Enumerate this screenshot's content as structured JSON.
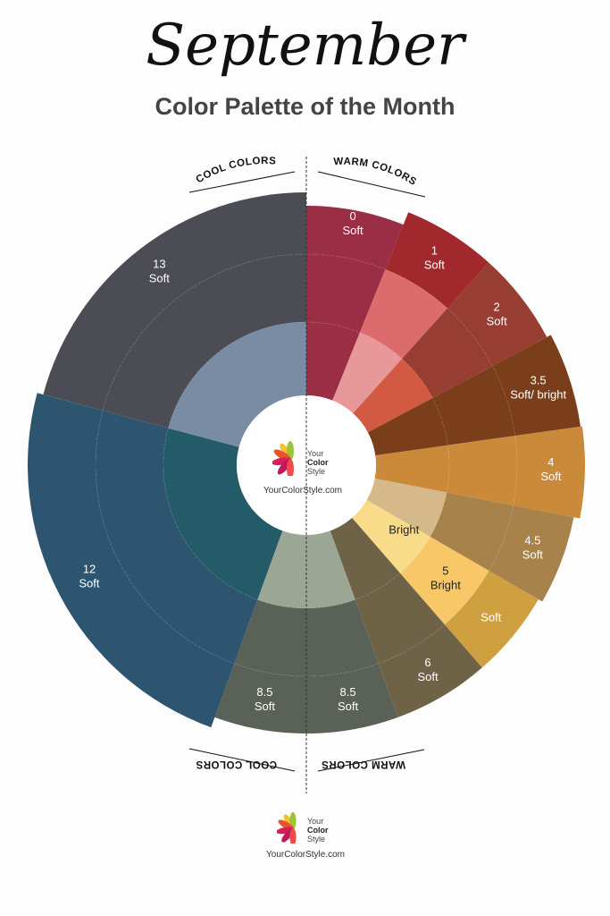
{
  "header": {
    "title": "September",
    "subtitle": "Color Palette of the Month"
  },
  "direction_labels": {
    "cool_top": "COOL COLORS",
    "warm_top": "WARM COLORS",
    "cool_bottom": "COOL COLORS",
    "warm_bottom": "WARM COLORS"
  },
  "center_logo": {
    "brand_line1": "Your",
    "brand_line2": "Color",
    "brand_line3": "Style",
    "site": "YourColorStyle.com"
  },
  "footer_logo": {
    "brand_line1": "Your",
    "brand_line2": "Color",
    "brand_line3": "Style",
    "site": "YourColorStyle.com"
  },
  "chart_data": {
    "type": "sunburst",
    "segments": [
      {
        "id": "0",
        "label_num": "0",
        "label_text": "Soft",
        "start_deg": 0,
        "end_deg": 22,
        "outer": "#9a2e45",
        "middle": "#9a2e45",
        "inner": "#9a2e45"
      },
      {
        "id": "1",
        "label_num": "1",
        "label_text": "Soft",
        "start_deg": 22,
        "end_deg": 42,
        "outer": "#a1282c",
        "middle": "#dc6b6e",
        "inner": "#e89898"
      },
      {
        "id": "2",
        "label_num": "2",
        "label_text": "Soft",
        "start_deg": 42,
        "end_deg": 62,
        "outer": "#973d31",
        "middle": "#973d31",
        "inner": "#d35a42"
      },
      {
        "id": "3.5",
        "label_num": "3.5",
        "label_text": "Soft/ bright",
        "start_deg": 62,
        "end_deg": 82,
        "outer": "#7a3e1b",
        "middle": "#7a3e1b",
        "inner": "#7a3e1b"
      },
      {
        "id": "4",
        "label_num": "4",
        "label_text": "Soft",
        "start_deg": 82,
        "end_deg": 101,
        "outer": "#cb8a3a",
        "middle": "#cb8a3a",
        "inner": "#cb8a3a"
      },
      {
        "id": "4.5",
        "label_num": "4.5",
        "label_text": "Soft",
        "start_deg": 101,
        "end_deg": 120,
        "outer": "#a7824b",
        "middle": "#a7824b",
        "inner": "#d5b98a"
      },
      {
        "id": "5",
        "label_num": "5",
        "label_text": "Bright",
        "extra_text": "Soft",
        "start_deg": 120,
        "end_deg": 139,
        "outer": "#cfa03f",
        "middle": "#f8c868",
        "inner": "#f9dc8a",
        "inner_label": "Bright"
      },
      {
        "id": "6",
        "label_num": "6",
        "label_text": "Soft",
        "start_deg": 139,
        "end_deg": 160,
        "outer": "#6f6347",
        "middle": "#6f6347",
        "inner": "#6f6347"
      },
      {
        "id": "8.5w",
        "label_num": "8.5",
        "label_text": "Soft",
        "start_deg": 160,
        "end_deg": 180,
        "outer": "#5a6257",
        "middle": "#5a6257",
        "inner": "#9ba694"
      },
      {
        "id": "8.5c",
        "label_num": "8.5",
        "label_text": "Soft",
        "start_deg": 180,
        "end_deg": 200,
        "outer": "#5a6257",
        "middle": "#5a6257",
        "inner": "#9ba694"
      },
      {
        "id": "12",
        "label_num": "12",
        "label_text": "Soft",
        "start_deg": 200,
        "end_deg": 285,
        "outer": "#2e5570",
        "middle": "#2e5570",
        "inner": "#245b68"
      },
      {
        "id": "13",
        "label_num": "13",
        "label_text": "Soft",
        "start_deg": 285,
        "end_deg": 360,
        "outer": "#4c4d54",
        "middle": "#4c4d54",
        "inner": "#7a8ba4"
      }
    ]
  }
}
